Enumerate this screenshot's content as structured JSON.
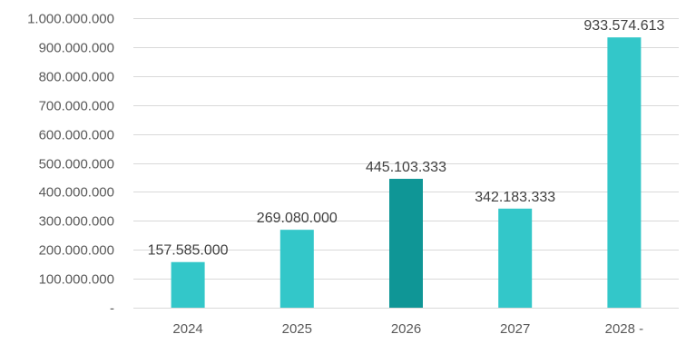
{
  "chart_data": {
    "type": "bar",
    "title": "",
    "xlabel": "",
    "ylabel": "",
    "categories": [
      "2024",
      "2025",
      "2026",
      "2027",
      "2028 -"
    ],
    "values": [
      157585000,
      269080000,
      445103333,
      342183333,
      933574613
    ],
    "data_labels": [
      "157.585.000",
      "269.080.000",
      "445.103.333",
      "342.183.333",
      "933.574.613"
    ],
    "ylim": [
      0,
      1000000000
    ],
    "y_ticks": [
      {
        "value": 0,
        "label": "-"
      },
      {
        "value": 100000000,
        "label": "100.000.000"
      },
      {
        "value": 200000000,
        "label": "200.000.000"
      },
      {
        "value": 300000000,
        "label": "300.000.000"
      },
      {
        "value": 400000000,
        "label": "400.000.000"
      },
      {
        "value": 500000000,
        "label": "500.000.000"
      },
      {
        "value": 600000000,
        "label": "600.000.000"
      },
      {
        "value": 700000000,
        "label": "700.000.000"
      },
      {
        "value": 800000000,
        "label": "800.000.000"
      },
      {
        "value": 900000000,
        "label": "900.000.000"
      },
      {
        "value": 1000000000,
        "label": "1.000.000.000"
      }
    ],
    "grid": true,
    "legend": "none",
    "colors": {
      "bar": "#33c7c9",
      "highlight_bar": "#0f9696",
      "grid": "#d9d9d9",
      "axis_text": "#595959",
      "label_text": "#404040"
    },
    "highlight_index": 2
  }
}
